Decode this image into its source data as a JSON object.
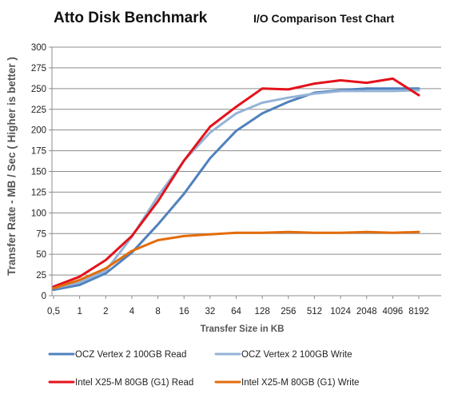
{
  "chart_data": {
    "type": "line",
    "title": "Atto Disk Benchmark",
    "subtitle": "I/O Comparison Test Chart",
    "xlabel": "Transfer Size  in KB",
    "ylabel": "Transfer Rate - MB / Sec  ( Higher is better )",
    "categories": [
      "0,5",
      "1",
      "2",
      "4",
      "8",
      "16",
      "32",
      "64",
      "128",
      "256",
      "512",
      "1024",
      "2048",
      "4096",
      "8192"
    ],
    "ylim": [
      0,
      300
    ],
    "yticks": [
      0,
      25,
      50,
      75,
      100,
      125,
      150,
      175,
      200,
      225,
      250,
      275,
      300
    ],
    "grid": true,
    "legend_position": "bottom",
    "series": [
      {
        "name": "OCZ Vertex 2 100GB Read",
        "color": "#4f81bd",
        "values": [
          7,
          13,
          27,
          52,
          86,
          123,
          166,
          199,
          220,
          234,
          245,
          248,
          250,
          250,
          250
        ]
      },
      {
        "name": "OCZ Vertex 2 100GB Write",
        "color": "#95b3d7",
        "values": [
          9,
          16,
          30,
          71,
          120,
          163,
          197,
          220,
          233,
          239,
          244,
          247,
          247,
          247,
          248
        ]
      },
      {
        "name": "Intel X25-M 80GB (G1) Read",
        "color": "#e3121b",
        "values": [
          11,
          23,
          43,
          72,
          114,
          163,
          204,
          228,
          250,
          249,
          256,
          260,
          257,
          262,
          242
        ]
      },
      {
        "name": "Intel X25-M 80GB (G1) Write",
        "color": "#e36c0a",
        "values": [
          9,
          19,
          33,
          54,
          67,
          72,
          74,
          76,
          76,
          77,
          76,
          76,
          77,
          76,
          77
        ]
      }
    ]
  }
}
